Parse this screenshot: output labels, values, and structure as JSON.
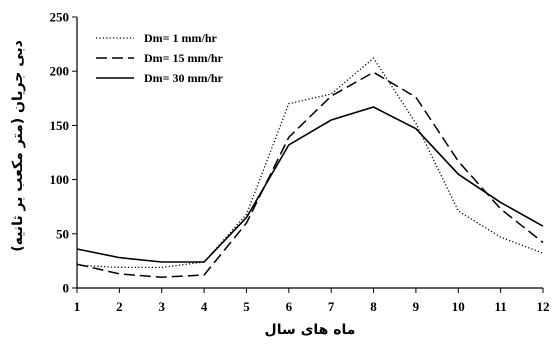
{
  "chart_data": {
    "type": "line",
    "x": [
      1,
      2,
      3,
      4,
      5,
      6,
      7,
      8,
      9,
      10,
      11,
      12
    ],
    "xlim": [
      1,
      12
    ],
    "ylim": [
      0,
      250
    ],
    "xticks": [
      1,
      2,
      3,
      4,
      5,
      6,
      7,
      8,
      9,
      10,
      11,
      12
    ],
    "yticks": [
      0,
      50,
      100,
      150,
      200,
      250
    ],
    "xlabel": "ماه های سال",
    "ylabel": "دبی جریان (متر مکعب بر ثانیه)",
    "grid": false,
    "legend_position": "top-left",
    "series": [
      {
        "name": "Dm= 1 mm/hr",
        "style": "dotted",
        "values": [
          21,
          19,
          19,
          24,
          68,
          170,
          179,
          212,
          152,
          71,
          47,
          32
        ]
      },
      {
        "name": "Dm= 15 mm/hr",
        "style": "dashed",
        "values": [
          22,
          13,
          10,
          12,
          60,
          139,
          177,
          199,
          176,
          117,
          73,
          42
        ]
      },
      {
        "name": "Dm= 30 mm/hr",
        "style": "solid",
        "values": [
          36,
          28,
          24,
          24,
          65,
          132,
          155,
          167,
          147,
          105,
          79,
          57
        ]
      }
    ],
    "line_color": "#000000"
  }
}
